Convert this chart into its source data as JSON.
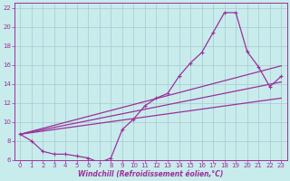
{
  "xlabel": "Windchill (Refroidissement éolien,°C)",
  "bg_color": "#c8ecec",
  "grid_color": "#a8c8d0",
  "line_color": "#9b309b",
  "xlim": [
    -0.5,
    23.5
  ],
  "ylim": [
    6,
    22.5
  ],
  "xticks": [
    0,
    1,
    2,
    3,
    4,
    5,
    6,
    7,
    8,
    9,
    10,
    11,
    12,
    13,
    14,
    15,
    16,
    17,
    18,
    19,
    20,
    21,
    22,
    23
  ],
  "yticks": [
    6,
    8,
    10,
    12,
    14,
    16,
    18,
    20,
    22
  ],
  "series1_x": [
    0,
    1,
    2,
    3,
    4,
    5,
    6,
    7,
    8,
    9,
    10,
    11,
    12,
    13,
    14,
    15,
    16,
    17,
    18,
    19,
    20,
    21,
    22,
    23
  ],
  "series1_y": [
    8.7,
    8.0,
    6.9,
    6.6,
    6.6,
    6.4,
    6.2,
    5.7,
    6.2,
    9.2,
    10.3,
    11.7,
    12.5,
    13.0,
    14.8,
    16.2,
    17.3,
    19.4,
    21.5,
    21.5,
    17.4,
    15.8,
    13.7,
    14.8
  ],
  "series2_x": [
    0,
    23
  ],
  "series2_y": [
    8.7,
    12.5
  ],
  "series3_x": [
    0,
    23
  ],
  "series3_y": [
    8.7,
    14.2
  ],
  "series4_x": [
    0,
    23
  ],
  "series4_y": [
    8.7,
    15.9
  ],
  "xlabel_fontsize": 5.5,
  "tick_fontsize": 5
}
